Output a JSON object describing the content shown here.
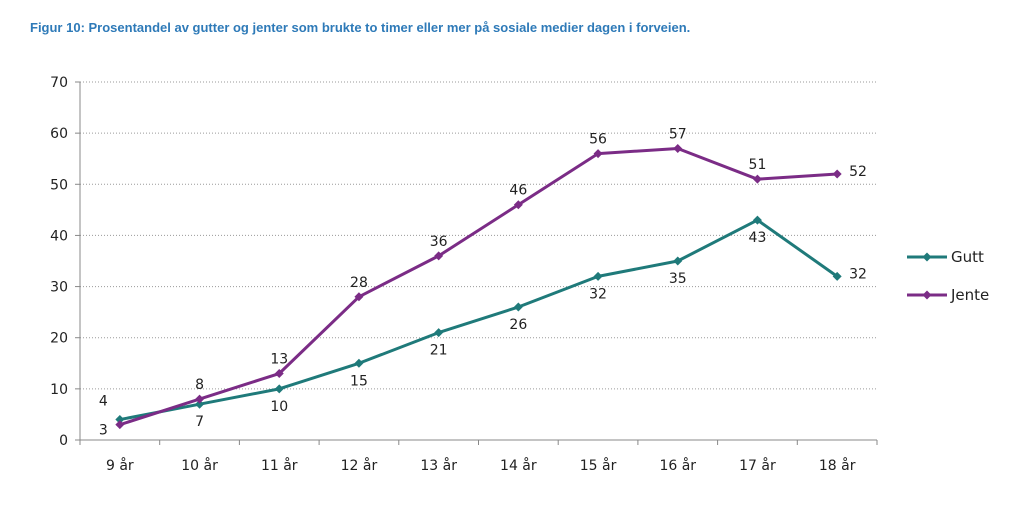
{
  "chart_data": {
    "type": "line",
    "title": "Figur 10: Prosentandel av gutter og jenter som brukte to timer eller mer på sosiale medier dagen i forveien.",
    "xlabel": "",
    "ylabel": "",
    "categories": [
      "9 år",
      "10 år",
      "11 år",
      "12 år",
      "13 år",
      "14 år",
      "15 år",
      "16 år",
      "17 år",
      "18 år"
    ],
    "ylim": [
      0,
      70
    ],
    "yticks": [
      0,
      10,
      20,
      30,
      40,
      50,
      60,
      70
    ],
    "grid": true,
    "legend": "right",
    "series": [
      {
        "name": "Gutt",
        "color": "#1f7a7a",
        "values": [
          4,
          7,
          10,
          15,
          21,
          26,
          32,
          35,
          43,
          32
        ]
      },
      {
        "name": "Jente",
        "color": "#7b2c86",
        "values": [
          3,
          8,
          13,
          28,
          36,
          46,
          56,
          57,
          51,
          52
        ]
      }
    ]
  }
}
